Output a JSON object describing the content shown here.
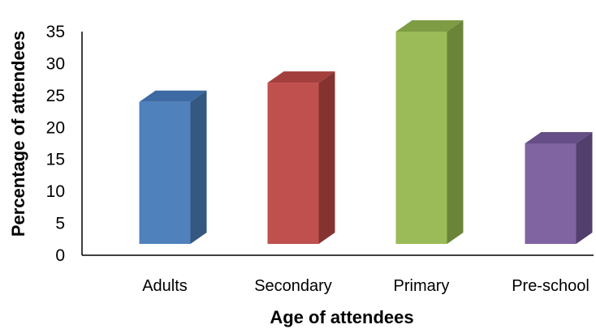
{
  "chart_data": {
    "type": "bar",
    "style": "3d",
    "title": "",
    "xlabel": "Age of attendees",
    "ylabel": "Percentage of attendees",
    "categories": [
      "Adults",
      "Secondary",
      "Primary",
      "Pre-school"
    ],
    "values": [
      24,
      27,
      35,
      17.5
    ],
    "ylim": [
      0,
      35
    ],
    "yticks": [
      "0",
      "5",
      "10",
      "15",
      "20",
      "25",
      "30",
      "35"
    ],
    "grid": false,
    "legend": "none",
    "colors": [
      {
        "front": "#4F81BD",
        "top": "#3D6AA3",
        "side": "#34587F"
      },
      {
        "front": "#C0504D",
        "top": "#A33F3C",
        "side": "#853331"
      },
      {
        "front": "#9BBB59",
        "top": "#7E9C44",
        "side": "#6B8538"
      },
      {
        "front": "#8064A2",
        "top": "#664E86",
        "side": "#533F6D"
      }
    ]
  }
}
